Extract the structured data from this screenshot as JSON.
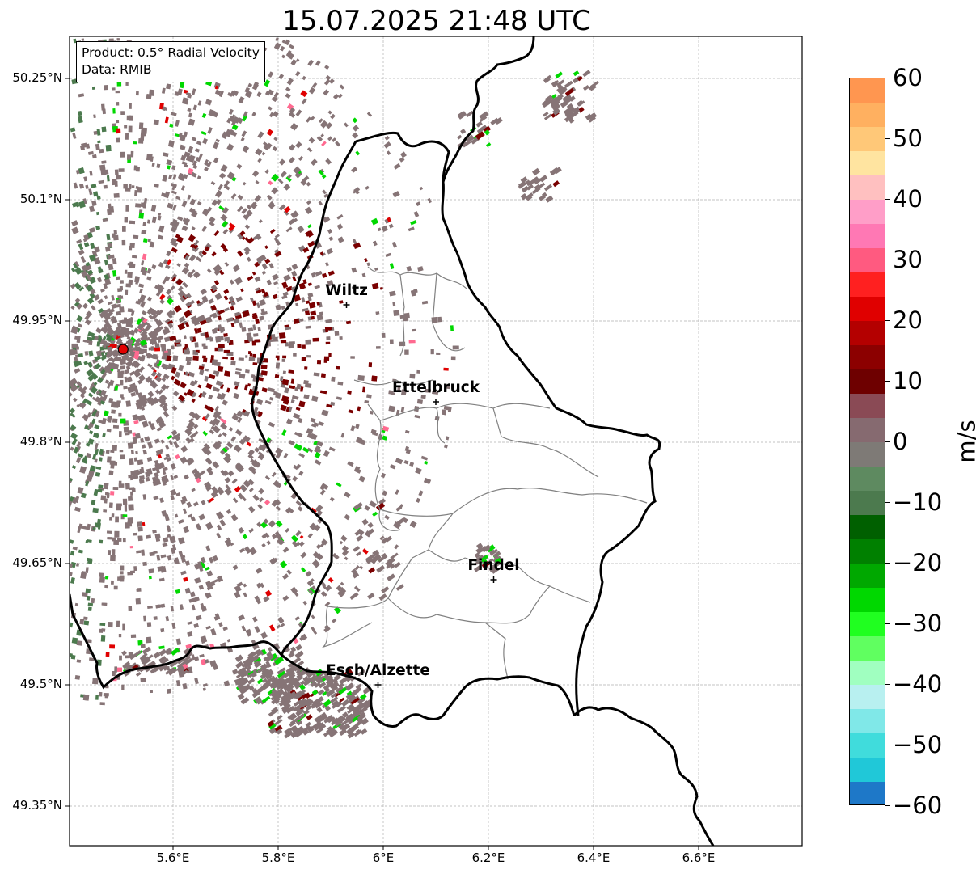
{
  "title": "15.07.2025 21:48 UTC",
  "info": {
    "product": "Product: 0.5° Radial Velocity",
    "data": "Data: RMIB"
  },
  "latitude_labels": [
    "50.25°N",
    "50.1°N",
    "49.95°N",
    "49.8°N",
    "49.65°N",
    "49.5°N",
    "49.35°N"
  ],
  "longitude_labels": [
    "5.6°E",
    "5.8°E",
    "6°E",
    "6.2°E",
    "6.4°E",
    "6.6°E"
  ],
  "cities": [
    {
      "name": "Wiltz",
      "lat": 49.97,
      "lon": 5.93
    },
    {
      "name": "Ettelbruck",
      "lat": 49.85,
      "lon": 6.1
    },
    {
      "name": "Findel",
      "lat": 49.63,
      "lon": 6.21
    },
    {
      "name": "Esch/Alzette",
      "lat": 49.5,
      "lon": 5.99
    }
  ],
  "radar_site": {
    "lat": 49.915,
    "lon": 5.505,
    "color": "#e00000"
  },
  "colorbar": {
    "label": "m/s",
    "min": -60,
    "max": 60,
    "ticks": [
      "60",
      "50",
      "40",
      "30",
      "20",
      "10",
      "0",
      "−10",
      "−20",
      "−30",
      "−40",
      "−50",
      "−60"
    ],
    "colors_top_to_bottom": [
      "#ff9650",
      "#ffb060",
      "#ffc878",
      "#ffe4a0",
      "#ffc0c0",
      "#ff9ec8",
      "#ff78b4",
      "#ff5a80",
      "#ff2020",
      "#e00000",
      "#b40000",
      "#8c0000",
      "#6e0000",
      "#8a4a55",
      "#866a70",
      "#7e7a76",
      "#5e8a60",
      "#4c7a4e",
      "#006000",
      "#008000",
      "#00a800",
      "#00d800",
      "#20ff20",
      "#60ff60",
      "#a0ffc0",
      "#b8f0f0",
      "#80e8e8",
      "#40dcdc",
      "#20c8d8",
      "#1e78c8"
    ]
  },
  "velocity_colors": {
    "near_zero": "#867476",
    "receding_strong": "#7a0000",
    "receding_red": "#e00000",
    "receding_pink": "#ff6a90",
    "approaching_green": "#00d800",
    "approaching_dark": "#4c7a4e"
  }
}
